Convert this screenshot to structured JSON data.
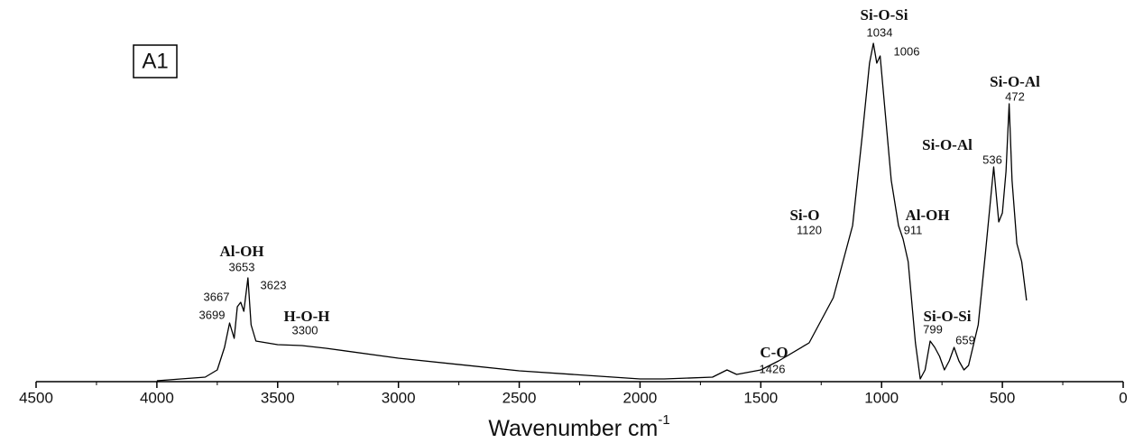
{
  "chart_data": {
    "type": "line",
    "panel_label": "A1",
    "xlabel": "Wavenumber cm",
    "xlabel_superscript": "-1",
    "xlim": [
      4500,
      0
    ],
    "xticks": [
      4500,
      4000,
      3500,
      3000,
      2500,
      2000,
      1500,
      1000,
      500,
      0
    ],
    "xminorticks": [
      4250,
      3750,
      3250,
      2750,
      2250,
      1750,
      1250,
      750,
      250
    ],
    "ylim": [
      0,
      100
    ],
    "color": "#000000",
    "x": [
      4000,
      3800,
      3750,
      3720,
      3699,
      3680,
      3667,
      3653,
      3640,
      3623,
      3610,
      3590,
      3500,
      3400,
      3300,
      3000,
      2500,
      2000,
      1900,
      1700,
      1640,
      1600,
      1500,
      1426,
      1300,
      1200,
      1150,
      1120,
      1080,
      1050,
      1034,
      1020,
      1006,
      990,
      960,
      930,
      911,
      890,
      860,
      840,
      820,
      799,
      780,
      760,
      740,
      720,
      700,
      680,
      659,
      640,
      600,
      570,
      536,
      515,
      500,
      485,
      472,
      460,
      440,
      420,
      400
    ],
    "values": [
      0.25,
      1.25,
      3.25,
      9.5,
      16.25,
      12,
      20.75,
      22,
      19.5,
      28.75,
      15.75,
      11.25,
      10.25,
      10,
      9.25,
      6.5,
      3,
      0.75,
      0.75,
      1.25,
      3.25,
      2,
      3.25,
      5.75,
      10.75,
      23.25,
      35.75,
      43.25,
      68.25,
      88.25,
      93.75,
      88.25,
      90.25,
      78.25,
      55.75,
      43.25,
      39.5,
      33.25,
      10.75,
      0.75,
      3.25,
      11.25,
      9.5,
      7,
      3.25,
      5.75,
      9.5,
      5.75,
      3.25,
      4.5,
      15.75,
      35.75,
      59.5,
      44.25,
      46.75,
      58.25,
      77,
      55.75,
      38.25,
      33.25,
      22.5
    ],
    "annotations": [
      {
        "name": "Al-OH",
        "wavenumber": 3653
      },
      {
        "wavenumber": 3699
      },
      {
        "wavenumber": 3667
      },
      {
        "wavenumber": 3623
      },
      {
        "name": "H-O-H",
        "wavenumber": 3300
      },
      {
        "name": "C-O",
        "wavenumber": 1426
      },
      {
        "name": "Si-O",
        "wavenumber": 1120
      },
      {
        "name": "Si-O-Si",
        "wavenumber": 1034
      },
      {
        "wavenumber": 1006
      },
      {
        "name": "Al-OH",
        "wavenumber": 911
      },
      {
        "name": "Si-O-Si",
        "wavenumber": 799
      },
      {
        "wavenumber": 659
      },
      {
        "name": "Si-O-Al",
        "wavenumber": 536
      },
      {
        "name": "Si-O-Al",
        "wavenumber": 472
      }
    ]
  }
}
